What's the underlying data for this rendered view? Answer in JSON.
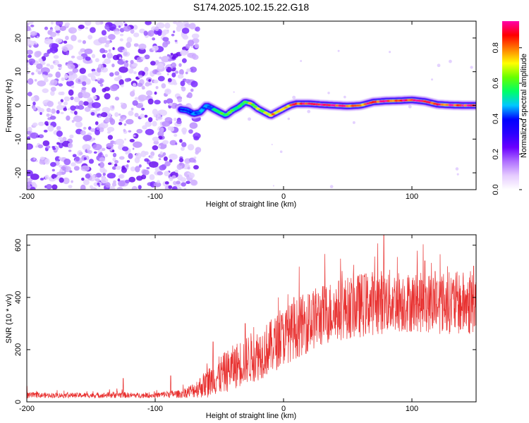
{
  "title": "S174.2025.102.15.22.G18",
  "chart_data": [
    {
      "type": "heatmap",
      "xlabel": "Height of straight line (km)",
      "ylabel": "Frequency (Hz)",
      "xlim": [
        -200,
        150
      ],
      "ylim": [
        -25,
        25
      ],
      "xticks": [
        -200,
        -100,
        0,
        100
      ],
      "yticks": [
        -20,
        -10,
        0,
        10,
        20
      ],
      "colorbar": {
        "label": "Normalized spectral amplitude",
        "range": [
          0.0,
          0.95
        ],
        "ticks": [
          0.0,
          0.2,
          0.4,
          0.6,
          0.8
        ],
        "colormap": [
          "#ffffff",
          "#e6ccff",
          "#b070ff",
          "#6a00ff",
          "#2a00ff",
          "#0000ff",
          "#00c8ff",
          "#00ff66",
          "#66ff00",
          "#ffff00",
          "#ff8000",
          "#ff0000",
          "#ff00aa"
        ]
      },
      "noise_region": {
        "x_range": [
          -200,
          -68
        ],
        "y_range": [
          -25,
          25
        ]
      },
      "ridge": {
        "x": [
          -80,
          -75,
          -70,
          -65,
          -60,
          -55,
          -50,
          -45,
          -40,
          -35,
          -30,
          -25,
          -20,
          -15,
          -10,
          -5,
          0,
          5,
          10,
          20,
          30,
          40,
          50,
          60,
          70,
          80,
          90,
          100,
          110,
          120,
          130,
          140,
          150
        ],
        "frequency": [
          -1.2,
          -1.5,
          -2.5,
          -2,
          0,
          -1,
          -2,
          -3,
          -1.5,
          -0.5,
          1,
          0.5,
          -1,
          -2,
          -3,
          -2,
          -1,
          0,
          0.5,
          0.5,
          0.2,
          0,
          -0.2,
          0,
          1,
          1.3,
          1.4,
          1.6,
          1.2,
          0.3,
          0.1,
          0,
          0
        ],
        "amplitude": [
          0.35,
          0.4,
          0.45,
          0.5,
          0.45,
          0.5,
          0.55,
          0.6,
          0.6,
          0.55,
          0.65,
          0.7,
          0.7,
          0.7,
          0.75,
          0.75,
          0.78,
          0.8,
          0.85,
          0.9,
          0.92,
          0.9,
          0.88,
          0.85,
          0.85,
          0.88,
          0.9,
          0.92,
          0.9,
          0.88,
          0.9,
          0.92,
          0.9
        ]
      }
    },
    {
      "type": "line",
      "xlabel": "Height of straight line (km)",
      "ylabel": "SNR (10 * v/v)",
      "xlim": [
        -200,
        150
      ],
      "ylim": [
        0,
        640
      ],
      "xticks": [
        -200,
        -100,
        0,
        100
      ],
      "yticks": [
        0,
        200,
        400,
        600
      ],
      "color": "#e8302f",
      "series": [
        {
          "x": [
            -200,
            -190,
            -180,
            -170,
            -160,
            -150,
            -140,
            -130,
            -120,
            -110,
            -100,
            -90,
            -80,
            -70,
            -60,
            -50,
            -40,
            -30,
            -20,
            -10,
            0,
            10,
            20,
            30,
            40,
            50,
            60,
            70,
            80,
            90,
            100,
            110,
            120,
            130,
            140,
            150
          ],
          "mean": [
            25,
            25,
            25,
            25,
            25,
            25,
            25,
            28,
            25,
            25,
            25,
            30,
            30,
            45,
            70,
            100,
            130,
            160,
            180,
            210,
            250,
            280,
            310,
            330,
            350,
            360,
            370,
            380,
            385,
            385,
            380,
            380,
            380,
            380,
            375,
            375
          ],
          "spread": [
            12,
            10,
            10,
            10,
            10,
            10,
            10,
            14,
            10,
            10,
            10,
            14,
            15,
            30,
            55,
            75,
            85,
            95,
            100,
            105,
            110,
            115,
            120,
            120,
            120,
            120,
            125,
            125,
            125,
            120,
            115,
            115,
            120,
            120,
            125,
            120
          ],
          "peaks": [
            [
              -200,
              60
            ],
            [
              -125,
              90
            ],
            [
              -88,
              100
            ],
            [
              -55,
              230
            ],
            [
              -30,
              300
            ],
            [
              8,
              400
            ],
            [
              20,
              410
            ],
            [
              63,
              480
            ],
            [
              78,
              638
            ],
            [
              110,
              540
            ],
            [
              118,
              500
            ],
            [
              148,
              520
            ]
          ]
        }
      ]
    }
  ]
}
